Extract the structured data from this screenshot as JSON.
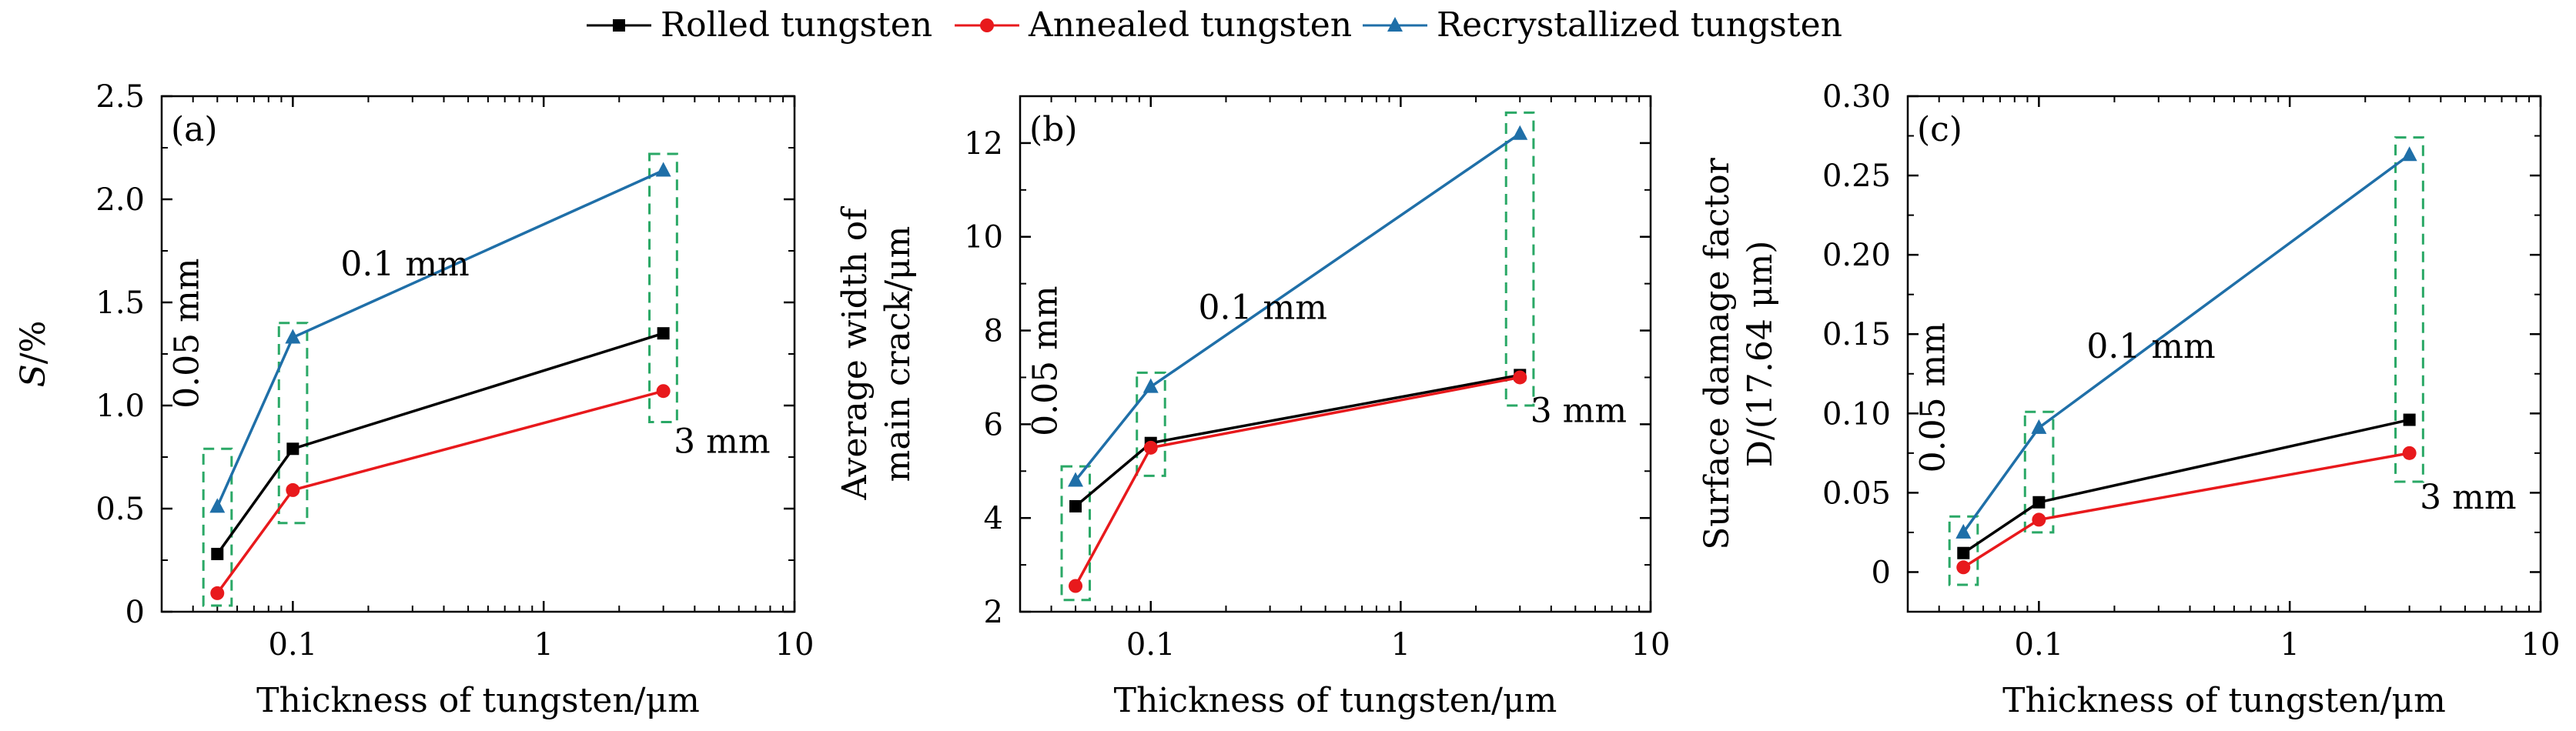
{
  "legend": {
    "placement": "top-center",
    "entries": [
      {
        "label": "Rolled tungsten",
        "color": "#000000",
        "marker": "square"
      },
      {
        "label": "Annealed tungsten",
        "color": "#e8191c",
        "marker": "circle"
      },
      {
        "label": "Recrystallized tungsten",
        "color": "#1f6fa8",
        "marker": "triangle"
      }
    ]
  },
  "colors": {
    "rolled": "#000000",
    "annealed": "#e8191c",
    "recrystallized": "#1f6fa8",
    "box": "#2aa866"
  },
  "chart_data": [
    {
      "type": "line",
      "panel": "(a)",
      "xscale": "log",
      "xlabel": "Thickness of tungsten/μm",
      "ylabel": "S/%",
      "xlim": [
        0.03,
        10
      ],
      "ylim": [
        0,
        2.5
      ],
      "xticks": [
        0.1,
        1,
        10
      ],
      "xtick_labels": [
        "0.1",
        "1",
        "10"
      ],
      "yticks": [
        0,
        0.5,
        1.0,
        1.5,
        2.0,
        2.5
      ],
      "ytick_labels": [
        "0",
        "0.5",
        "1.0",
        "1.5",
        "2.0",
        "2.5"
      ],
      "x": [
        0.05,
        0.1,
        3
      ],
      "series": [
        {
          "name": "Rolled tungsten",
          "values": [
            0.28,
            0.79,
            1.35
          ]
        },
        {
          "name": "Annealed tungsten",
          "values": [
            0.09,
            0.59,
            1.07
          ]
        },
        {
          "name": "Recrystallized tungsten",
          "values": [
            0.51,
            1.33,
            2.14
          ]
        }
      ],
      "annotations": [
        {
          "text": "0.05 mm",
          "x": 0.042,
          "y": 1.35,
          "rotate": true
        },
        {
          "text": "0.1 mm",
          "x": 0.155,
          "y": 1.63
        },
        {
          "text": "3 mm",
          "x": 3.3,
          "y": 0.77
        }
      ],
      "boxes": [
        {
          "x": [
            0.044,
            0.057
          ],
          "y": [
            0.03,
            0.79
          ]
        },
        {
          "x": [
            0.088,
            0.114
          ],
          "y": [
            0.43,
            1.4
          ]
        },
        {
          "x": [
            2.64,
            3.4
          ],
          "y": [
            0.92,
            2.22
          ]
        }
      ]
    },
    {
      "type": "line",
      "panel": "(b)",
      "xscale": "log",
      "xlabel": "Thickness of tungsten/μm",
      "ylabel": "Average width of main crack/μm",
      "ylabel_lines": [
        "Average width of",
        "main crack/μm"
      ],
      "xlim": [
        0.03,
        10
      ],
      "ylim": [
        2,
        13
      ],
      "xticks": [
        0.1,
        1,
        10
      ],
      "xtick_labels": [
        "0.1",
        "1",
        "10"
      ],
      "yticks": [
        2,
        4,
        6,
        8,
        10,
        12
      ],
      "ytick_labels": [
        "2",
        "4",
        "6",
        "8",
        "10",
        "12"
      ],
      "x": [
        0.05,
        0.1,
        3
      ],
      "series": [
        {
          "name": "Rolled tungsten",
          "values": [
            4.25,
            5.6,
            7.05
          ]
        },
        {
          "name": "Annealed tungsten",
          "values": [
            2.55,
            5.5,
            7.0
          ]
        },
        {
          "name": "Recrystallized tungsten",
          "values": [
            4.8,
            6.8,
            12.2
          ]
        }
      ],
      "annotations": [
        {
          "text": "0.05 mm",
          "x": 0.042,
          "y": 7.35,
          "rotate": true
        },
        {
          "text": "0.1 mm",
          "x": 0.155,
          "y": 8.25
        },
        {
          "text": "3 mm",
          "x": 3.3,
          "y": 6.05
        }
      ],
      "boxes": [
        {
          "x": [
            0.044,
            0.057
          ],
          "y": [
            2.25,
            5.1
          ]
        },
        {
          "x": [
            0.088,
            0.114
          ],
          "y": [
            4.9,
            7.1
          ]
        },
        {
          "x": [
            2.64,
            3.4
          ],
          "y": [
            6.4,
            12.65
          ]
        }
      ]
    },
    {
      "type": "line",
      "panel": "(c)",
      "xscale": "log",
      "xlabel": "Thickness of tungsten/μm",
      "ylabel": "Surface damage factor D/(17.64 μm)",
      "ylabel_lines": [
        "Surface damage factor",
        "D/(17.64 μm)"
      ],
      "xlim": [
        0.03,
        10
      ],
      "ylim": [
        -0.025,
        0.3
      ],
      "xticks": [
        0.1,
        1,
        10
      ],
      "xtick_labels": [
        "0.1",
        "1",
        "10"
      ],
      "yticks": [
        0,
        0.05,
        0.1,
        0.15,
        0.2,
        0.25,
        0.3
      ],
      "ytick_labels": [
        "0",
        "0.05",
        "0.10",
        "0.15",
        "0.20",
        "0.25",
        "0.30"
      ],
      "x": [
        0.05,
        0.1,
        3
      ],
      "series": [
        {
          "name": "Rolled tungsten",
          "values": [
            0.012,
            0.044,
            0.096
          ]
        },
        {
          "name": "Annealed tungsten",
          "values": [
            0.003,
            0.033,
            0.075
          ]
        },
        {
          "name": "Recrystallized tungsten",
          "values": [
            0.025,
            0.091,
            0.263
          ]
        }
      ],
      "annotations": [
        {
          "text": "0.05 mm",
          "x": 0.042,
          "y": 0.11,
          "rotate": true
        },
        {
          "text": "0.1 mm",
          "x": 0.155,
          "y": 0.135
        },
        {
          "text": "3 mm",
          "x": 3.3,
          "y": 0.04
        }
      ],
      "boxes": [
        {
          "x": [
            0.044,
            0.057
          ],
          "y": [
            -0.008,
            0.035
          ]
        },
        {
          "x": [
            0.088,
            0.114
          ],
          "y": [
            0.025,
            0.101
          ]
        },
        {
          "x": [
            2.64,
            3.4
          ],
          "y": [
            0.057,
            0.274
          ]
        }
      ]
    }
  ]
}
